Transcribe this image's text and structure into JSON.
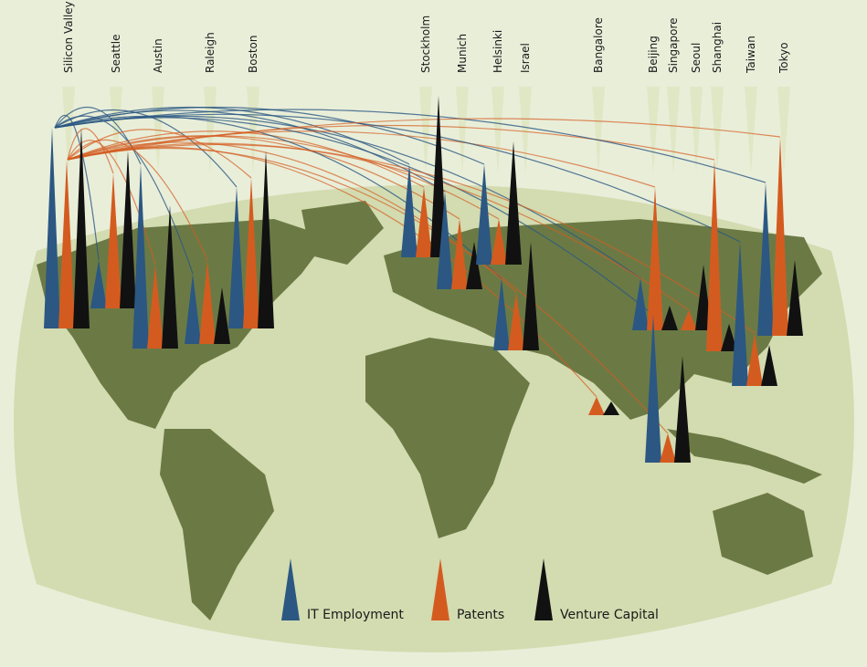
{
  "series": [
    {
      "name": "IT Employment",
      "color": "#2b5782"
    },
    {
      "name": "Patents",
      "color": "#d45b1f"
    },
    {
      "name": "Venture Capital",
      "color": "#111111"
    }
  ],
  "cities": [
    {
      "name": "Silicon Valley",
      "values": [
        220,
        185,
        220
      ]
    },
    {
      "name": "Seattle",
      "values": [
        53,
        148,
        173
      ]
    },
    {
      "name": "Austin",
      "values": [
        202,
        92,
        157
      ]
    },
    {
      "name": "Raleigh",
      "values": [
        77,
        92,
        62
      ]
    },
    {
      "name": "Boston",
      "values": [
        155,
        165,
        195
      ]
    },
    {
      "name": "Stockholm",
      "values": [
        102,
        77,
        177
      ]
    },
    {
      "name": "Munich",
      "values": [
        107,
        77,
        52
      ]
    },
    {
      "name": "Helsinki",
      "values": [
        110,
        50,
        135
      ]
    },
    {
      "name": "Israel",
      "values": [
        79,
        64,
        119
      ]
    },
    {
      "name": "Bangalore",
      "values": [
        0,
        20,
        15
      ]
    },
    {
      "name": "Beijing",
      "values": [
        57,
        157,
        27
      ]
    },
    {
      "name": "Singapore",
      "values": [
        162,
        32,
        117
      ]
    },
    {
      "name": "Seoul",
      "values": [
        0,
        22,
        72
      ]
    },
    {
      "name": "Shanghai",
      "values": [
        0,
        210,
        30
      ]
    },
    {
      "name": "Taiwan",
      "values": [
        158,
        58,
        45
      ]
    },
    {
      "name": "Tokyo",
      "values": [
        168,
        218,
        83
      ]
    }
  ]
}
